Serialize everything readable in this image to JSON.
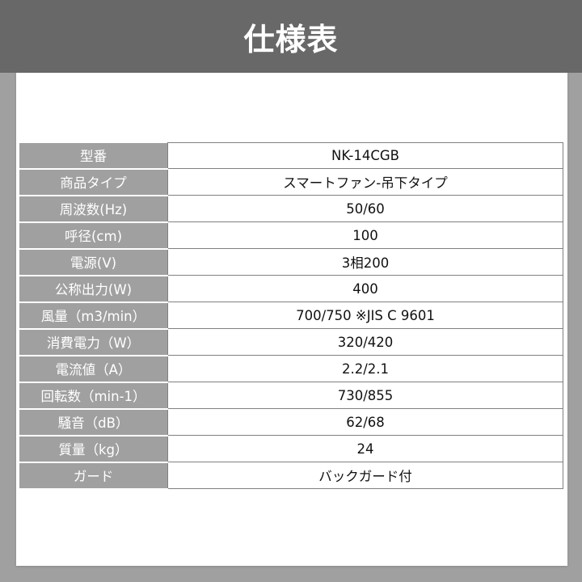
{
  "header": {
    "title": "仕様表"
  },
  "colors": {
    "header_bg": "#686868",
    "page_bg": "#a0a0a0",
    "label_bg": "#a0a0a0",
    "panel_bg": "#ffffff"
  },
  "specs": [
    {
      "label": "型番",
      "value": "NK-14CGB"
    },
    {
      "label": "商品タイプ",
      "value": "スマートファン-吊下タイプ"
    },
    {
      "label": "周波数(Hz)",
      "value": "50/60"
    },
    {
      "label": "呼径(cm)",
      "value": "100"
    },
    {
      "label": "電源(V)",
      "value": "3相200"
    },
    {
      "label": "公称出力(W)",
      "value": "400"
    },
    {
      "label": "風量（m3/min）",
      "value": "700/750 ※JIS C 9601"
    },
    {
      "label": "消費電力（W）",
      "value": "320/420"
    },
    {
      "label": "電流値（A）",
      "value": "2.2/2.1"
    },
    {
      "label": "回転数（min-1）",
      "value": "730/855"
    },
    {
      "label": "騒音（dB）",
      "value": "62/68"
    },
    {
      "label": "質量（kg）",
      "value": "24"
    },
    {
      "label": "ガード",
      "value": "バックガード付"
    }
  ]
}
